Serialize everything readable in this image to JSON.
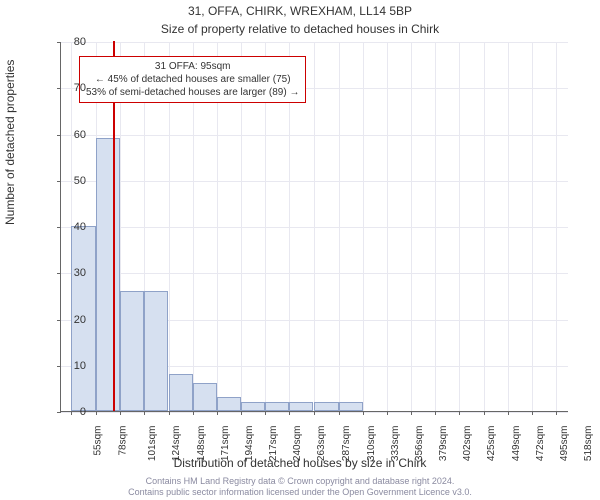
{
  "suptitle": "31, OFFA, CHIRK, WREXHAM, LL14 5BP",
  "title": "Size of property relative to detached houses in Chirk",
  "xlabel": "Distribution of detached houses by size in Chirk",
  "ylabel": "Number of detached properties",
  "chart": {
    "type": "bar",
    "ylim": [
      0,
      80
    ],
    "yticks": [
      0,
      10,
      20,
      30,
      40,
      50,
      60,
      70,
      80
    ],
    "xtick_labels": [
      "55sqm",
      "78sqm",
      "101sqm",
      "124sqm",
      "148sqm",
      "171sqm",
      "194sqm",
      "217sqm",
      "240sqm",
      "263sqm",
      "287sqm",
      "310sqm",
      "333sqm",
      "356sqm",
      "379sqm",
      "402sqm",
      "425sqm",
      "449sqm",
      "472sqm",
      "495sqm",
      "518sqm"
    ],
    "xtick_positions": [
      55,
      78,
      101,
      124,
      148,
      171,
      194,
      217,
      240,
      263,
      287,
      310,
      333,
      356,
      379,
      402,
      425,
      449,
      472,
      495,
      518
    ],
    "xlim": [
      45,
      530
    ],
    "bin_width": 23,
    "bars": [
      {
        "x": 55,
        "h": 40
      },
      {
        "x": 78,
        "h": 59
      },
      {
        "x": 101,
        "h": 26
      },
      {
        "x": 124,
        "h": 26
      },
      {
        "x": 148,
        "h": 8
      },
      {
        "x": 171,
        "h": 6
      },
      {
        "x": 194,
        "h": 3
      },
      {
        "x": 217,
        "h": 2
      },
      {
        "x": 240,
        "h": 2
      },
      {
        "x": 263,
        "h": 2
      },
      {
        "x": 287,
        "h": 2
      },
      {
        "x": 310,
        "h": 2
      },
      {
        "x": 333,
        "h": 0
      },
      {
        "x": 356,
        "h": 0
      },
      {
        "x": 379,
        "h": 0
      },
      {
        "x": 402,
        "h": 0
      },
      {
        "x": 425,
        "h": 0
      },
      {
        "x": 449,
        "h": 0
      },
      {
        "x": 472,
        "h": 0
      },
      {
        "x": 495,
        "h": 0
      }
    ],
    "bar_fill": "#d6e0f0",
    "bar_stroke": "#8fa2c8",
    "grid_color": "#e8e8f0",
    "background": "#ffffff",
    "marker": {
      "x": 95,
      "color": "#cc0000"
    },
    "annotation": {
      "line1": "31 OFFA: 95sqm",
      "line2": "← 45% of detached houses are smaller (75)",
      "line3": "53% of semi-detached houses are larger (89) →",
      "border_color": "#cc0000",
      "text_color": "#333333",
      "bg": "#ffffff"
    }
  },
  "footer": {
    "line1": "Contains HM Land Registry data © Crown copyright and database right 2024.",
    "line2": "Contains public sector information licensed under the Open Government Licence v3.0.",
    "color": "#8a8aa0"
  }
}
